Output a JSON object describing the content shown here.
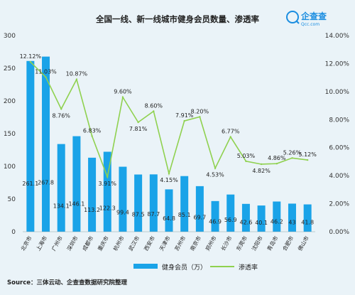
{
  "brand": {
    "name": "企查查",
    "domain": "Qcc.com",
    "color": "#1a8de0"
  },
  "chart_data": {
    "type": "bar",
    "title": "全国一线、新一线城市健身会员数量、渗透率",
    "categories": [
      "北京市",
      "上海市",
      "广州市",
      "深圳市",
      "成都市",
      "重庆市",
      "杭州市",
      "武汉市",
      "西安市",
      "天津市",
      "苏州市",
      "南京市",
      "郑州市",
      "长沙市",
      "东莞市",
      "沈阳市",
      "青岛市",
      "合肥市",
      "佛山市"
    ],
    "series": [
      {
        "name": "健身会员（万）",
        "type": "bar",
        "axis": "left",
        "color": "#1aa3e8",
        "values": [
          261.1,
          267.8,
          134.1,
          146.1,
          113.2,
          122.3,
          99.4,
          87.5,
          87.7,
          64.8,
          85.1,
          69.7,
          46.9,
          56.9,
          42.6,
          40.1,
          46.2,
          43,
          41.8
        ],
        "labels": [
          "261.1",
          "267.8",
          "134.1",
          "146.1",
          "113.2",
          "122.3",
          "99.4",
          "87.5",
          "87.7",
          "64.8",
          "85.1",
          "69.7",
          "46.9",
          "56.9",
          "42.6",
          "40.1",
          "46.2",
          "43",
          "41.8"
        ]
      },
      {
        "name": "渗透率",
        "type": "line",
        "axis": "right",
        "color": "#8fd14f",
        "values": [
          12.12,
          11.03,
          8.76,
          10.87,
          6.83,
          3.91,
          9.6,
          7.81,
          8.6,
          4.15,
          7.91,
          8.2,
          4.53,
          6.77,
          5.03,
          4.82,
          4.86,
          5.26,
          5.12
        ],
        "labels": [
          "12.12%",
          "11.03%",
          "8.76%",
          "10.87%",
          "6.83%",
          "3.91%",
          "9.60%",
          "7.81%",
          "8.60%",
          "4.15%",
          "7.91%",
          "8.20%",
          "4.53%",
          "6.77%",
          "5.03%",
          "4.82%",
          "4.86%",
          "5.26%",
          "5.12%"
        ]
      }
    ],
    "y_left": {
      "min": 0,
      "max": 300,
      "ticks": [
        "0",
        "50",
        "100",
        "150",
        "200",
        "250",
        "300"
      ]
    },
    "y_right": {
      "min": 0,
      "max": 14,
      "ticks": [
        "0.00%",
        "2.00%",
        "4.00%",
        "6.00%",
        "8.00%",
        "10.00%",
        "12.00%",
        "14.00%"
      ]
    },
    "grid": false,
    "legend": "bottom",
    "source": "Source：三体云动、企查查数据研究院整理"
  }
}
